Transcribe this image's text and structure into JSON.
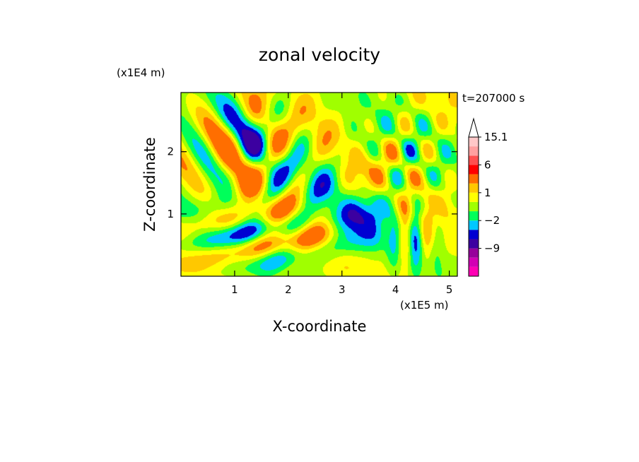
{
  "chart_data": {
    "type": "heatmap",
    "title": "zonal velocity",
    "xlabel": "X-coordinate",
    "ylabel": "Z-coordinate",
    "x_scale_label": "(x1E5 m)",
    "y_scale_label": "(x1E4 m)",
    "time_label": "t=207000 s",
    "xlim": [
      0,
      5.15
    ],
    "ylim": [
      0,
      2.95
    ],
    "x_ticks": [
      1,
      2,
      3,
      4,
      5
    ],
    "y_ticks": [
      1,
      2
    ],
    "x_tick_labels": [
      "1",
      "2",
      "3",
      "4",
      "5"
    ],
    "y_tick_labels": [
      "1",
      "2"
    ],
    "colorbar": {
      "levels": [
        -15,
        -12,
        -9,
        -6,
        -3,
        -2,
        -1,
        0,
        1,
        2,
        3,
        6,
        9,
        12,
        15.1
      ],
      "colors": [
        "#ff00b4",
        "#d200b4",
        "#96009b",
        "#3c00a0",
        "#0000d2",
        "#00c8ff",
        "#00ff5a",
        "#a0ff00",
        "#ffff00",
        "#ffc800",
        "#ff6e00",
        "#ff0000",
        "#ff5050",
        "#ffa0a0",
        "#ffc8c8"
      ],
      "labeled_levels": [
        {
          "value": 15.1,
          "label": "15.1"
        },
        {
          "value": 6,
          "label": "6"
        },
        {
          "value": 1,
          "label": "1"
        },
        {
          "value": -2,
          "label": "−2"
        },
        {
          "value": -9,
          "label": "−9"
        }
      ]
    }
  }
}
